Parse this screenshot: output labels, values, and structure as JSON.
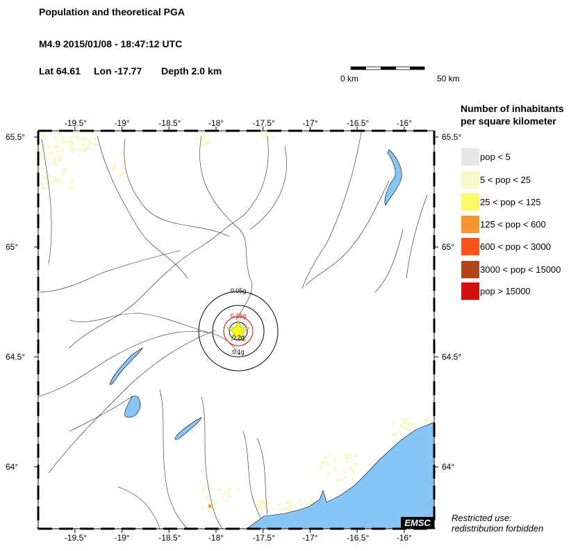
{
  "header": {
    "title": "Population and theoretical PGA",
    "event": "M4.9  2015/01/08 - 18:47:12 UTC",
    "lat": "Lat 64.61",
    "lon": "Lon -17.77",
    "depth": "Depth  2.0 km"
  },
  "scale_bar": {
    "start": "0 km",
    "end": "50 km"
  },
  "map": {
    "lon_ticks": [
      "-19.5°",
      "-19°",
      "-18.5°",
      "-18°",
      "-17.5°",
      "-17°",
      "-16.5°",
      "-16°"
    ],
    "lon_values": [
      -19.5,
      -19,
      -18.5,
      -18,
      -17.5,
      -17,
      -16.5,
      -16
    ],
    "lat_ticks": [
      "65.5°",
      "65°",
      "64.5°",
      "64°"
    ],
    "lat_values": [
      65.5,
      65,
      64.5,
      64
    ],
    "epicenter": {
      "lat": 64.61,
      "lon": -17.77
    },
    "pga_contours": [
      "0.05g",
      "0.1g",
      "0.15g",
      "0.2g"
    ],
    "water_color": "#87c5f7",
    "logo": "EMSC"
  },
  "legend": {
    "title_line1": "Number of inhabitants",
    "title_line2": "per square kilometer",
    "items": [
      {
        "label": "pop < 5",
        "color": "#e6e6e6"
      },
      {
        "label": "5 < pop < 25",
        "color": "#f8f8c8"
      },
      {
        "label": "25 < pop < 125",
        "color": "#fbfb6a"
      },
      {
        "label": "125 < pop < 600",
        "color": "#f7962f"
      },
      {
        "label": "600 < pop < 3000",
        "color": "#f9531c"
      },
      {
        "label": "3000 < pop < 15000",
        "color": "#b04519"
      },
      {
        "label": "pop > 15000",
        "color": "#d40f0f"
      }
    ]
  },
  "notice": {
    "line1": "Restricted use:",
    "line2": "redistribution forbidden"
  }
}
